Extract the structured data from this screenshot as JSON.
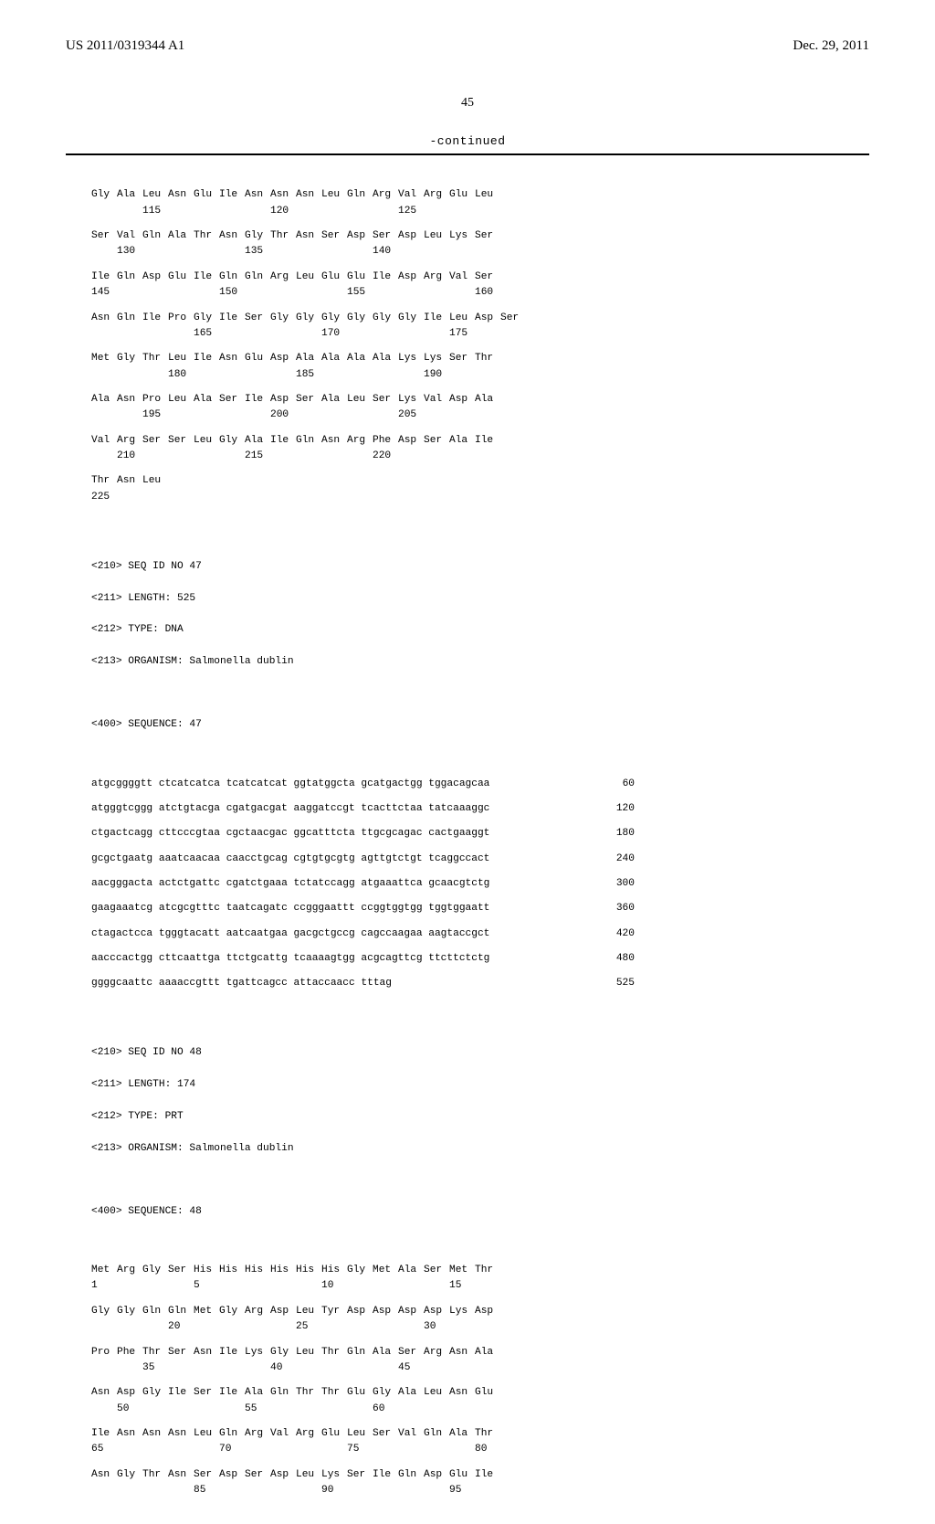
{
  "header": {
    "left": "US 2011/0319344 A1",
    "right": "Dec. 29, 2011"
  },
  "page_number": "45",
  "continued_label": "-continued",
  "sequence1": {
    "rows": [
      {
        "aa": [
          "Gly",
          "Ala",
          "Leu",
          "Asn",
          "Glu",
          "Ile",
          "Asn",
          "Asn",
          "Asn",
          "Leu",
          "Gln",
          "Arg",
          "Val",
          "Arg",
          "Glu",
          "Leu"
        ],
        "nums": [
          "",
          "",
          "115",
          "",
          "",
          "",
          "",
          "120",
          "",
          "",
          "",
          "",
          "125",
          "",
          "",
          ""
        ]
      },
      {
        "aa": [
          "Ser",
          "Val",
          "Gln",
          "Ala",
          "Thr",
          "Asn",
          "Gly",
          "Thr",
          "Asn",
          "Ser",
          "Asp",
          "Ser",
          "Asp",
          "Leu",
          "Lys",
          "Ser"
        ],
        "nums": [
          "",
          "130",
          "",
          "",
          "",
          "",
          "135",
          "",
          "",
          "",
          "",
          "140",
          "",
          "",
          "",
          ""
        ]
      },
      {
        "aa": [
          "Ile",
          "Gln",
          "Asp",
          "Glu",
          "Ile",
          "Gln",
          "Gln",
          "Arg",
          "Leu",
          "Glu",
          "Glu",
          "Ile",
          "Asp",
          "Arg",
          "Val",
          "Ser"
        ],
        "nums": [
          "145",
          "",
          "",
          "",
          "",
          "150",
          "",
          "",
          "",
          "",
          "155",
          "",
          "",
          "",
          "",
          "160"
        ]
      },
      {
        "aa": [
          "Asn",
          "Gln",
          "Ile",
          "Pro",
          "Gly",
          "Ile",
          "Ser",
          "Gly",
          "Gly",
          "Gly",
          "Gly",
          "Gly",
          "Gly",
          "Ile",
          "Leu",
          "Asp",
          "Ser"
        ],
        "nums": [
          "",
          "",
          "",
          "",
          "165",
          "",
          "",
          "",
          "",
          "170",
          "",
          "",
          "",
          "",
          "175",
          "",
          ""
        ]
      },
      {
        "aa": [
          "Met",
          "Gly",
          "Thr",
          "Leu",
          "Ile",
          "Asn",
          "Glu",
          "Asp",
          "Ala",
          "Ala",
          "Ala",
          "Ala",
          "Lys",
          "Lys",
          "Ser",
          "Thr"
        ],
        "nums": [
          "",
          "",
          "",
          "180",
          "",
          "",
          "",
          "",
          "185",
          "",
          "",
          "",
          "",
          "190",
          "",
          ""
        ]
      },
      {
        "aa": [
          "Ala",
          "Asn",
          "Pro",
          "Leu",
          "Ala",
          "Ser",
          "Ile",
          "Asp",
          "Ser",
          "Ala",
          "Leu",
          "Ser",
          "Lys",
          "Val",
          "Asp",
          "Ala"
        ],
        "nums": [
          "",
          "",
          "195",
          "",
          "",
          "",
          "",
          "200",
          "",
          "",
          "",
          "",
          "205",
          "",
          "",
          ""
        ]
      },
      {
        "aa": [
          "Val",
          "Arg",
          "Ser",
          "Ser",
          "Leu",
          "Gly",
          "Ala",
          "Ile",
          "Gln",
          "Asn",
          "Arg",
          "Phe",
          "Asp",
          "Ser",
          "Ala",
          "Ile"
        ],
        "nums": [
          "",
          "210",
          "",
          "",
          "",
          "",
          "215",
          "",
          "",
          "",
          "",
          "220",
          "",
          "",
          "",
          ""
        ]
      }
    ],
    "tail": {
      "aa": [
        "Thr",
        "Asn",
        "Leu"
      ],
      "nums": [
        "225",
        "",
        ""
      ]
    }
  },
  "seq47_header": {
    "l1": "<210> SEQ ID NO 47",
    "l2": "<211> LENGTH: 525",
    "l3": "<212> TYPE: DNA",
    "l4": "<213> ORGANISM: Salmonella dublin",
    "l5": "<400> SEQUENCE: 47"
  },
  "seq47_rows": [
    {
      "seq": "atgcggggtt ctcatcatca tcatcatcat ggtatggcta gcatgactgg tggacagcaa",
      "n": "60"
    },
    {
      "seq": "atgggtcggg atctgtacga cgatgacgat aaggatccgt tcacttctaa tatcaaaggc",
      "n": "120"
    },
    {
      "seq": "ctgactcagg cttcccgtaa cgctaacgac ggcatttcta ttgcgcagac cactgaaggt",
      "n": "180"
    },
    {
      "seq": "gcgctgaatg aaatcaacaa caacctgcag cgtgtgcgtg agttgtctgt tcaggccact",
      "n": "240"
    },
    {
      "seq": "aacgggacta actctgattc cgatctgaaa tctatccagg atgaaattca gcaacgtctg",
      "n": "300"
    },
    {
      "seq": "gaagaaatcg atcgcgtttc taatcagatc ccgggaattt ccggtggtgg tggtggaatt",
      "n": "360"
    },
    {
      "seq": "ctagactcca tgggtacatt aatcaatgaa gacgctgccg cagccaagaa aagtaccgct",
      "n": "420"
    },
    {
      "seq": "aacccactgg cttcaattga ttctgcattg tcaaaagtgg acgcagttcg ttcttctctg",
      "n": "480"
    },
    {
      "seq": "ggggcaattc aaaaccgttt tgattcagcc attaccaacc tttag",
      "n": "525"
    }
  ],
  "seq48_header": {
    "l1": "<210> SEQ ID NO 48",
    "l2": "<211> LENGTH: 174",
    "l3": "<212> TYPE: PRT",
    "l4": "<213> ORGANISM: Salmonella dublin",
    "l5": "<400> SEQUENCE: 48"
  },
  "sequence2": {
    "rows": [
      {
        "aa": [
          "Met",
          "Arg",
          "Gly",
          "Ser",
          "His",
          "His",
          "His",
          "His",
          "His",
          "His",
          "Gly",
          "Met",
          "Ala",
          "Ser",
          "Met",
          "Thr"
        ],
        "nums": [
          "1",
          "",
          "",
          "",
          "5",
          "",
          "",
          "",
          "",
          "10",
          "",
          "",
          "",
          "",
          "15",
          ""
        ]
      },
      {
        "aa": [
          "Gly",
          "Gly",
          "Gln",
          "Gln",
          "Met",
          "Gly",
          "Arg",
          "Asp",
          "Leu",
          "Tyr",
          "Asp",
          "Asp",
          "Asp",
          "Asp",
          "Lys",
          "Asp"
        ],
        "nums": [
          "",
          "",
          "",
          "20",
          "",
          "",
          "",
          "",
          "25",
          "",
          "",
          "",
          "",
          "30",
          "",
          ""
        ]
      },
      {
        "aa": [
          "Pro",
          "Phe",
          "Thr",
          "Ser",
          "Asn",
          "Ile",
          "Lys",
          "Gly",
          "Leu",
          "Thr",
          "Gln",
          "Ala",
          "Ser",
          "Arg",
          "Asn",
          "Ala"
        ],
        "nums": [
          "",
          "",
          "35",
          "",
          "",
          "",
          "",
          "40",
          "",
          "",
          "",
          "",
          "45",
          "",
          "",
          ""
        ]
      },
      {
        "aa": [
          "Asn",
          "Asp",
          "Gly",
          "Ile",
          "Ser",
          "Ile",
          "Ala",
          "Gln",
          "Thr",
          "Thr",
          "Glu",
          "Gly",
          "Ala",
          "Leu",
          "Asn",
          "Glu"
        ],
        "nums": [
          "",
          "50",
          "",
          "",
          "",
          "",
          "55",
          "",
          "",
          "",
          "",
          "60",
          "",
          "",
          "",
          ""
        ]
      },
      {
        "aa": [
          "Ile",
          "Asn",
          "Asn",
          "Asn",
          "Leu",
          "Gln",
          "Arg",
          "Val",
          "Arg",
          "Glu",
          "Leu",
          "Ser",
          "Val",
          "Gln",
          "Ala",
          "Thr"
        ],
        "nums": [
          "65",
          "",
          "",
          "",
          "",
          "70",
          "",
          "",
          "",
          "",
          "75",
          "",
          "",
          "",
          "",
          "80"
        ]
      },
      {
        "aa": [
          "Asn",
          "Gly",
          "Thr",
          "Asn",
          "Ser",
          "Asp",
          "Ser",
          "Asp",
          "Leu",
          "Lys",
          "Ser",
          "Ile",
          "Gln",
          "Asp",
          "Glu",
          "Ile"
        ],
        "nums": [
          "",
          "",
          "",
          "",
          "85",
          "",
          "",
          "",
          "",
          "90",
          "",
          "",
          "",
          "",
          "95",
          ""
        ]
      }
    ]
  }
}
